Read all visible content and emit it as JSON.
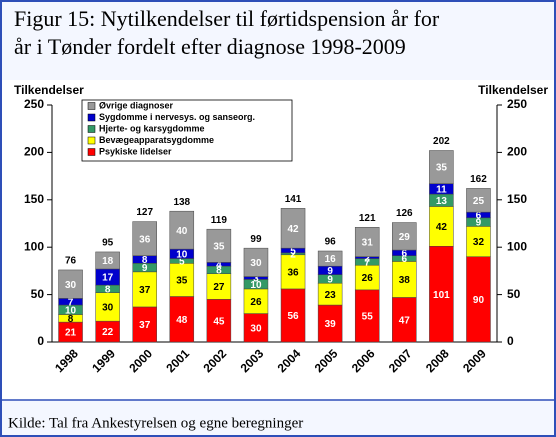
{
  "chart_data": {
    "type": "stacked_bar",
    "title": [
      "Figur 15: Nytilkendelser til førtidspension år for",
      "år i Tønder fordelt efter diagnose 1998-2009"
    ],
    "ylabel": "Tilkendelser",
    "y2label": "Tilkendelser",
    "source": "Kilde: Tal fra Ankestyrelsen og egne beregninger",
    "categories": [
      "1998",
      "1999",
      "2000",
      "2001",
      "2002",
      "2003",
      "2004",
      "2005",
      "2006",
      "2007",
      "2008",
      "2009"
    ],
    "series": [
      {
        "name": "Psykiske lidelser",
        "color": "#ff0000",
        "values": [
          21,
          22,
          37,
          48,
          45,
          30,
          56,
          39,
          55,
          47,
          101,
          90
        ]
      },
      {
        "name": "Bevægeapparatsygdomme",
        "color": "#ffff00",
        "values": [
          8,
          30,
          37,
          35,
          27,
          26,
          36,
          23,
          26,
          38,
          42,
          32
        ]
      },
      {
        "name": "Hjerte- og karsygdomme",
        "color": "#339966",
        "values": [
          10,
          8,
          9,
          5,
          8,
          10,
          2,
          9,
          7,
          6,
          13,
          9
        ]
      },
      {
        "name": "Sygdomme i nervesys. og sanseorg.",
        "color": "#0000cc",
        "values": [
          7,
          17,
          8,
          10,
          4,
          3,
          5,
          9,
          2,
          6,
          11,
          6
        ]
      },
      {
        "name": "Øvrige diagnoser",
        "color": "#999999",
        "values": [
          30,
          18,
          36,
          40,
          35,
          30,
          42,
          16,
          31,
          29,
          35,
          25
        ]
      }
    ],
    "totals": [
      76,
      95,
      127,
      138,
      119,
      99,
      141,
      96,
      121,
      126,
      202,
      162
    ],
    "ylim": [
      0,
      250
    ],
    "yticks": [
      0,
      50,
      100,
      150,
      200,
      250
    ],
    "y2lim": [
      0,
      250
    ],
    "y2ticks": [
      0,
      50,
      100,
      150,
      200,
      250
    ]
  }
}
